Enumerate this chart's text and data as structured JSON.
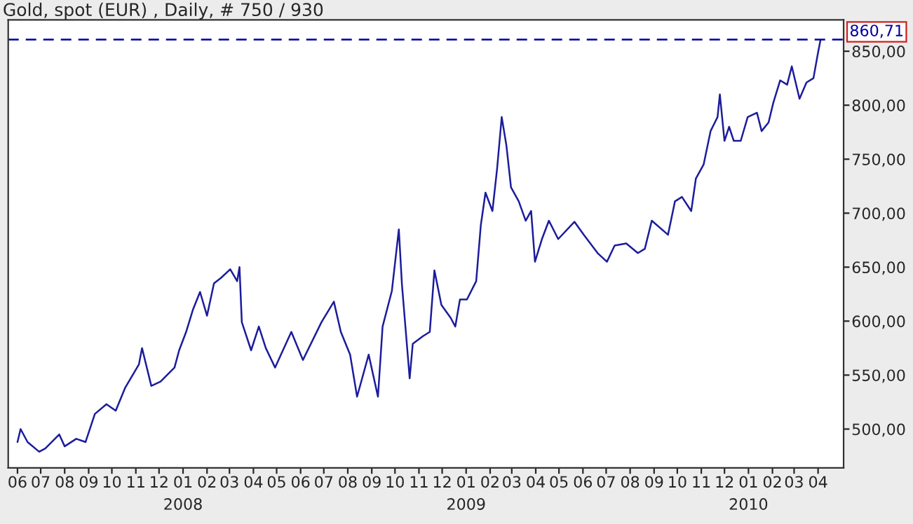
{
  "chart_data": {
    "type": "line",
    "title": "Gold, spot (EUR) , Daily, # 750 / 930",
    "x": [
      "2007-06-01",
      "2007-06-05",
      "2007-06-14",
      "2007-06-29",
      "2007-07-07",
      "2007-07-25",
      "2007-08-01",
      "2007-08-16",
      "2007-08-28",
      "2007-09-09",
      "2007-09-24",
      "2007-10-06",
      "2007-10-18",
      "2007-11-05",
      "2007-11-09",
      "2007-11-21",
      "2007-12-03",
      "2007-12-21",
      "2007-12-27",
      "2008-01-05",
      "2008-01-14",
      "2008-01-23",
      "2008-02-01",
      "2008-02-10",
      "2008-02-19",
      "2008-03-02",
      "2008-03-11",
      "2008-03-14",
      "2008-03-17",
      "2008-03-29",
      "2008-04-08",
      "2008-04-17",
      "2008-04-29",
      "2008-05-20",
      "2008-06-04",
      "2008-06-28",
      "2008-07-14",
      "2008-07-23",
      "2008-08-04",
      "2008-08-13",
      "2008-08-28",
      "2008-09-09",
      "2008-09-15",
      "2008-09-27",
      "2008-10-06",
      "2008-10-10",
      "2008-10-20",
      "2008-10-24",
      "2008-11-06",
      "2008-11-15",
      "2008-11-21",
      "2008-11-30",
      "2008-12-12",
      "2008-12-18",
      "2008-12-24",
      "2009-01-02",
      "2009-01-14",
      "2009-01-20",
      "2009-01-26",
      "2009-02-04",
      "2009-02-10",
      "2009-02-16",
      "2009-02-22",
      "2009-02-28",
      "2009-03-10",
      "2009-03-19",
      "2009-03-26",
      "2009-03-31",
      "2009-04-09",
      "2009-04-18",
      "2009-04-30",
      "2009-05-21",
      "2009-06-02",
      "2009-06-20",
      "2009-07-02",
      "2009-07-12",
      "2009-07-27",
      "2009-08-11",
      "2009-08-20",
      "2009-08-29",
      "2009-09-19",
      "2009-09-28",
      "2009-10-07",
      "2009-10-19",
      "2009-10-25",
      "2009-11-04",
      "2009-11-13",
      "2009-11-22",
      "2009-11-25",
      "2009-12-01",
      "2009-12-07",
      "2009-12-13",
      "2009-12-22",
      "2009-12-31",
      "2010-01-12",
      "2010-01-18",
      "2010-01-27",
      "2010-02-02",
      "2010-02-11",
      "2010-02-20",
      "2010-02-26",
      "2010-03-08",
      "2010-03-17",
      "2010-03-26",
      "2010-04-01",
      "2010-04-04"
    ],
    "series": [
      {
        "color": "#1c1c9c",
        "values": [
          488,
          500,
          488,
          479,
          482,
          495,
          484,
          491,
          488,
          514,
          523,
          517,
          538,
          560,
          575,
          540,
          544,
          557,
          573,
          590,
          611,
          627,
          605,
          635,
          640,
          648,
          637,
          650,
          599,
          573,
          595,
          575,
          557,
          590,
          564,
          599,
          618,
          590,
          569,
          530,
          569,
          530,
          595,
          628,
          685,
          634,
          547,
          579,
          586,
          590,
          647,
          615,
          603,
          595,
          620,
          620,
          637,
          689,
          719,
          702,
          741,
          789,
          763,
          724,
          711,
          693,
          702,
          655,
          676,
          693,
          676,
          692,
          680,
          663,
          655,
          670,
          672,
          663,
          667,
          693,
          680,
          711,
          715,
          702,
          732,
          745,
          776,
          789,
          810,
          767,
          780,
          767,
          767,
          789,
          793,
          776,
          784,
          802,
          823,
          819,
          836,
          806,
          821,
          825,
          849,
          860
        ]
      }
    ],
    "xlim": [
      "2007-05-20",
      "2010-05-04"
    ],
    "xticks": [
      {
        "value": "2007-06-01",
        "label": "06"
      },
      {
        "value": "2007-07-01",
        "label": "07"
      },
      {
        "value": "2007-08-01",
        "label": "08"
      },
      {
        "value": "2007-09-01",
        "label": "09"
      },
      {
        "value": "2007-10-01",
        "label": "10"
      },
      {
        "value": "2007-11-01",
        "label": "11"
      },
      {
        "value": "2007-12-01",
        "label": "12"
      },
      {
        "value": "2008-01-01",
        "label": "01\n2008"
      },
      {
        "value": "2008-02-01",
        "label": "02"
      },
      {
        "value": "2008-03-01",
        "label": "03"
      },
      {
        "value": "2008-04-01",
        "label": "04"
      },
      {
        "value": "2008-05-01",
        "label": "05"
      },
      {
        "value": "2008-06-01",
        "label": "06"
      },
      {
        "value": "2008-07-01",
        "label": "07"
      },
      {
        "value": "2008-08-01",
        "label": "08"
      },
      {
        "value": "2008-09-01",
        "label": "09"
      },
      {
        "value": "2008-10-01",
        "label": "10"
      },
      {
        "value": "2008-11-01",
        "label": "11"
      },
      {
        "value": "2008-12-01",
        "label": "12"
      },
      {
        "value": "2009-01-01",
        "label": "01\n2009"
      },
      {
        "value": "2009-02-01",
        "label": "02"
      },
      {
        "value": "2009-03-01",
        "label": "03"
      },
      {
        "value": "2009-04-01",
        "label": "04"
      },
      {
        "value": "2009-05-01",
        "label": "05"
      },
      {
        "value": "2009-06-01",
        "label": "06"
      },
      {
        "value": "2009-07-01",
        "label": "07"
      },
      {
        "value": "2009-08-01",
        "label": "08"
      },
      {
        "value": "2009-09-01",
        "label": "09"
      },
      {
        "value": "2009-10-01",
        "label": "10"
      },
      {
        "value": "2009-11-01",
        "label": "11"
      },
      {
        "value": "2009-12-01",
        "label": "12"
      },
      {
        "value": "2010-01-01",
        "label": "01\n2010"
      },
      {
        "value": "2010-02-01",
        "label": "02"
      },
      {
        "value": "2010-03-01",
        "label": "03"
      },
      {
        "value": "2010-04-01",
        "label": "04"
      }
    ],
    "ylim": [
      464,
      879
    ],
    "yticks": [
      {
        "value": 500,
        "label": "500,00"
      },
      {
        "value": 550,
        "label": "550,00"
      },
      {
        "value": 600,
        "label": "600,00"
      },
      {
        "value": 650,
        "label": "650,00"
      },
      {
        "value": 700,
        "label": "700,00"
      },
      {
        "value": 750,
        "label": "750,00"
      },
      {
        "value": 800,
        "label": "800,00"
      },
      {
        "value": 850,
        "label": "850,00"
      }
    ],
    "ref_lines": [
      {
        "axis": "y",
        "value": 860.71,
        "label": "860,71",
        "color": "#0000a0",
        "line_style": "dashed"
      }
    ],
    "grid": false,
    "legend": false,
    "line_style": "solid",
    "marker": "none"
  }
}
